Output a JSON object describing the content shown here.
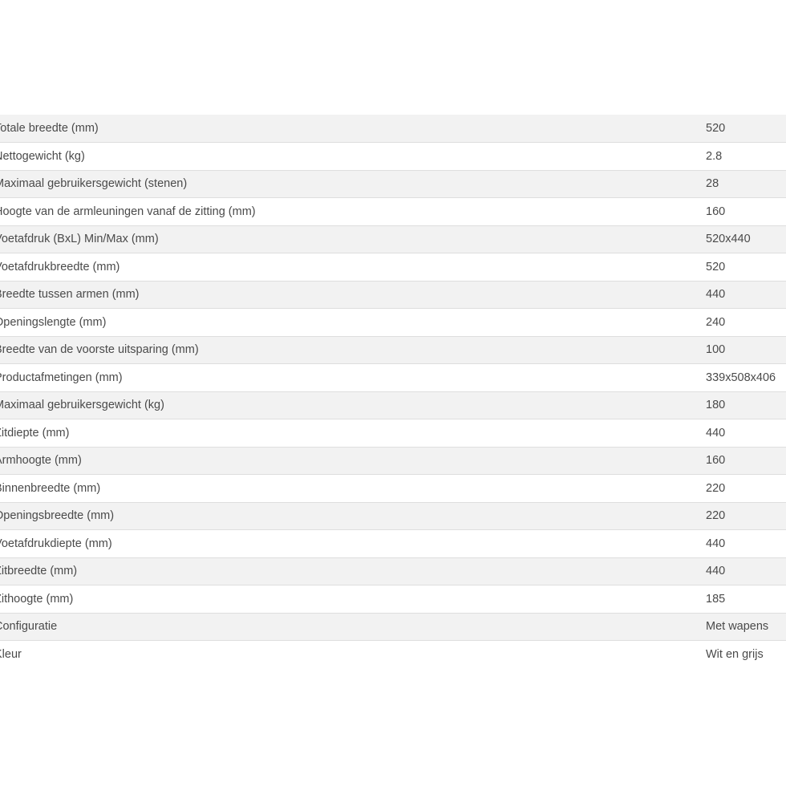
{
  "specs": [
    {
      "label": "Totale breedte (mm)",
      "value": "520"
    },
    {
      "label": "Nettogewicht (kg)",
      "value": "2.8"
    },
    {
      "label": "Maximaal gebruikersgewicht (stenen)",
      "value": "28"
    },
    {
      "label": "Hoogte van de armleuningen vanaf de zitting (mm)",
      "value": "160"
    },
    {
      "label": "Voetafdruk (BxL) Min/Max (mm)",
      "value": "520x440"
    },
    {
      "label": "Voetafdrukbreedte (mm)",
      "value": "520"
    },
    {
      "label": "Breedte tussen armen (mm)",
      "value": "440"
    },
    {
      "label": "Openingslengte (mm)",
      "value": "240"
    },
    {
      "label": "Breedte van de voorste uitsparing (mm)",
      "value": "100"
    },
    {
      "label": "Productafmetingen (mm)",
      "value": "339x508x406"
    },
    {
      "label": "Maximaal gebruikersgewicht (kg)",
      "value": "180"
    },
    {
      "label": "Zitdiepte (mm)",
      "value": "440"
    },
    {
      "label": "Armhoogte (mm)",
      "value": "160"
    },
    {
      "label": "Binnenbreedte (mm)",
      "value": "220"
    },
    {
      "label": "Openingsbreedte (mm)",
      "value": "220"
    },
    {
      "label": "Voetafdrukdiepte (mm)",
      "value": "440"
    },
    {
      "label": "Zitbreedte (mm)",
      "value": "440"
    },
    {
      "label": "Zithoogte (mm)",
      "value": "185"
    },
    {
      "label": "Configuratie",
      "value": "Met wapens"
    },
    {
      "label": "Kleur",
      "value": "Wit en grijs"
    }
  ]
}
